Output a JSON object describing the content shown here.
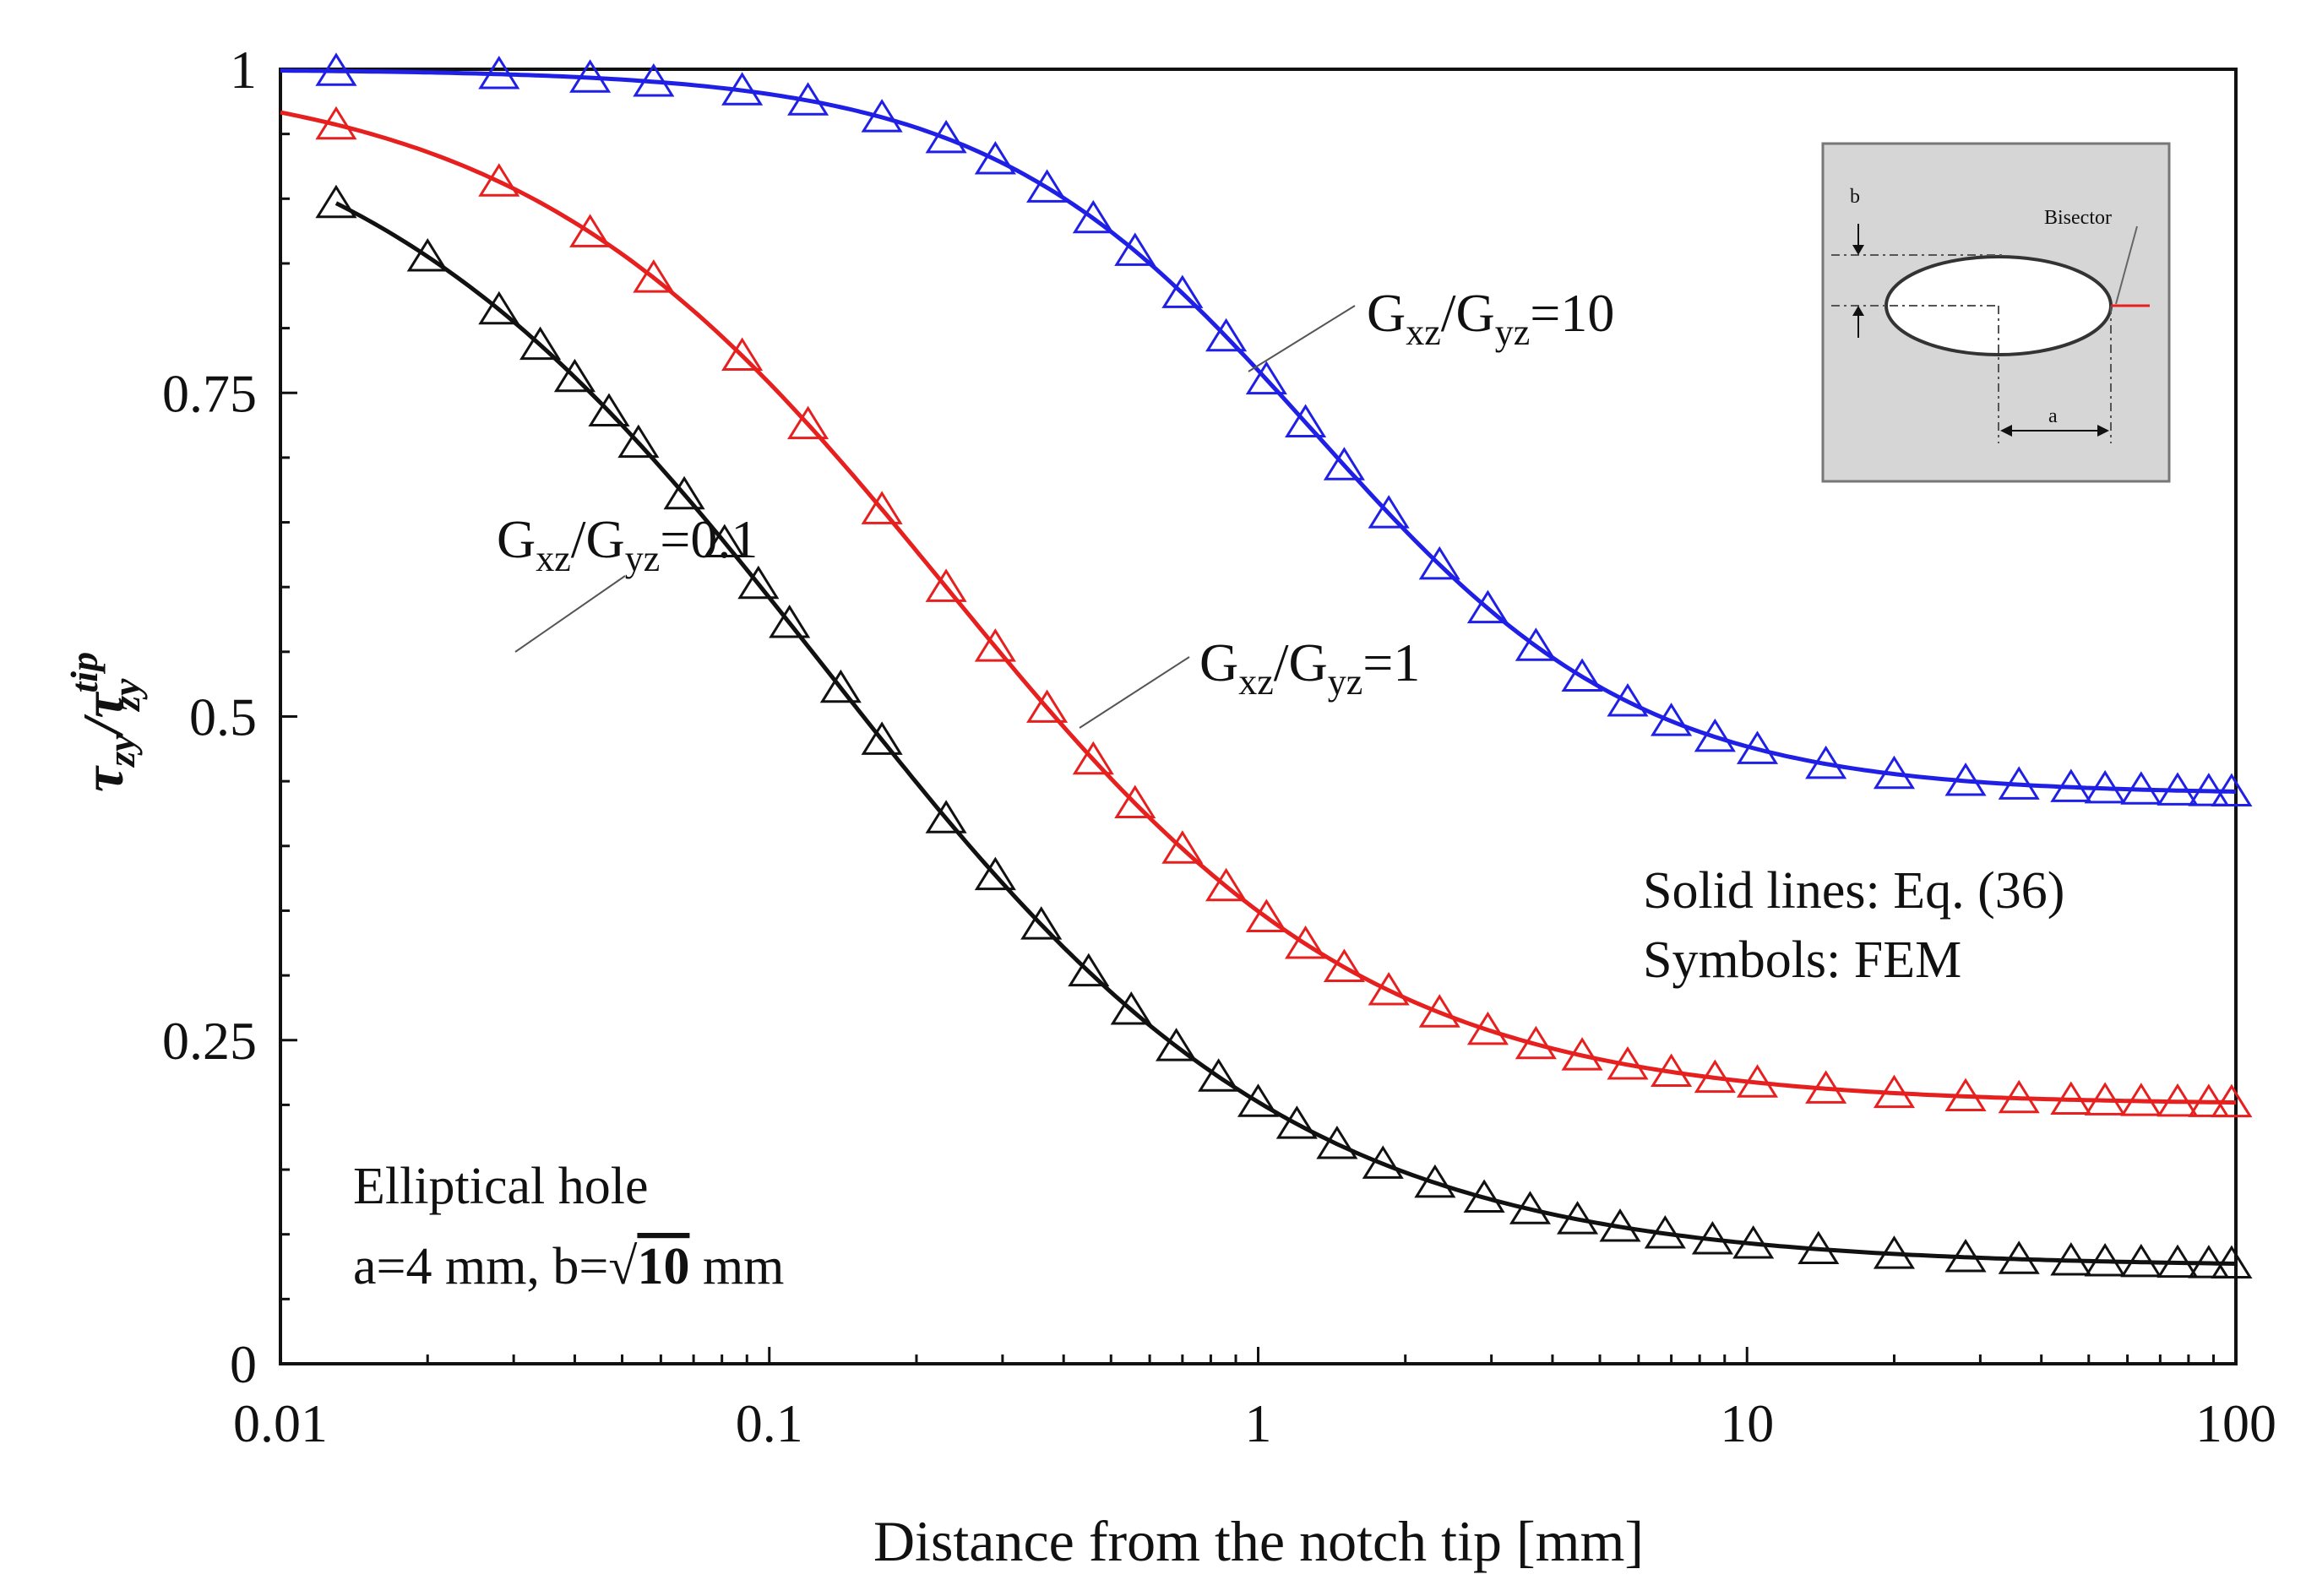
{
  "chart_data": {
    "type": "line",
    "xscale": "log",
    "xlim": [
      0.01,
      100
    ],
    "ylim": [
      0,
      1
    ],
    "xlabel": "Distance from the notch tip [mm]",
    "ylabel": {
      "main": "τ",
      "main_sub": "zy",
      "sep": "/",
      "denom": "τ",
      "denom_sub": "zy",
      "denom_sup": "tip"
    },
    "xticks": [
      {
        "value": 0.01,
        "label": "0.01"
      },
      {
        "value": 0.1,
        "label": "0.1"
      },
      {
        "value": 1,
        "label": "1"
      },
      {
        "value": 10,
        "label": "10"
      },
      {
        "value": 100,
        "label": "100"
      }
    ],
    "yticks": [
      {
        "value": 0,
        "label": "0"
      },
      {
        "value": 0.25,
        "label": "0.25"
      },
      {
        "value": 0.5,
        "label": "0.5"
      },
      {
        "value": 0.75,
        "label": "0.75"
      },
      {
        "value": 1,
        "label": "1"
      }
    ],
    "y_minor_step": 0.05,
    "series": [
      {
        "name": "G_xz/G_yz=10",
        "color": "#1f1fe6",
        "label": {
          "g1": "G",
          "s1": "xz",
          "slash": "/",
          "g2": "G",
          "s2": "yz",
          "rest": "=10"
        },
        "model": {
          "plateau": 0.44,
          "x0": 1.3,
          "n": 1.3,
          "xmin": 0.01
        },
        "fem_x": [
          0.013,
          0.028,
          0.043,
          0.058,
          0.088,
          0.12,
          0.17,
          0.23,
          0.29,
          0.37,
          0.46,
          0.56,
          0.7,
          0.86,
          1.04,
          1.25,
          1.5,
          1.85,
          2.35,
          2.95,
          3.7,
          4.6,
          5.7,
          7.0,
          8.6,
          10.5,
          14.5,
          20,
          28,
          36,
          46,
          54,
          64,
          76,
          88,
          98
        ]
      },
      {
        "name": "G_xz/G_yz=1",
        "color": "#e61f1f",
        "label": {
          "g1": "G",
          "s1": "xz",
          "slash": "/",
          "g2": "G",
          "s2": "yz",
          "rest": "=1"
        },
        "model": {
          "plateau": 0.2,
          "x0": 0.23,
          "n": 1.0,
          "xmin": 0.01
        },
        "fem_x": [
          0.013,
          0.028,
          0.043,
          0.058,
          0.088,
          0.12,
          0.17,
          0.23,
          0.29,
          0.37,
          0.46,
          0.56,
          0.7,
          0.86,
          1.04,
          1.25,
          1.5,
          1.85,
          2.35,
          2.95,
          3.7,
          4.6,
          5.7,
          7.0,
          8.6,
          10.5,
          14.5,
          20,
          28,
          36,
          46,
          54,
          64,
          76,
          88,
          98
        ]
      },
      {
        "name": "G_xz/G_yz=0.1",
        "color": "#111111",
        "label": {
          "g1": "G",
          "s1": "xz",
          "slash": "/",
          "g2": "G",
          "s2": "yz",
          "rest": "=0.1"
        },
        "model": {
          "plateau": 0.075,
          "x0": 0.13,
          "n": 0.9,
          "xmin": 0.013
        },
        "fem_x": [
          0.013,
          0.02,
          0.028,
          0.034,
          0.04,
          0.047,
          0.054,
          0.067,
          0.081,
          0.095,
          0.11,
          0.14,
          0.17,
          0.23,
          0.29,
          0.36,
          0.45,
          0.55,
          0.68,
          0.83,
          1.0,
          1.2,
          1.45,
          1.8,
          2.3,
          2.9,
          3.6,
          4.5,
          5.5,
          6.8,
          8.5,
          10.3,
          14,
          20,
          28,
          36,
          46,
          54,
          64,
          76,
          88,
          98
        ]
      }
    ],
    "annotations": {
      "legend_lines": [
        "Solid lines: Eq. (36)",
        "Symbols: FEM"
      ],
      "geometry_lines": [
        "Elliptical hole",
        "a=4 mm, b=",
        "10",
        "mm"
      ]
    },
    "inset": {
      "b": "b",
      "a": "a",
      "bisector": "Bisector"
    }
  }
}
